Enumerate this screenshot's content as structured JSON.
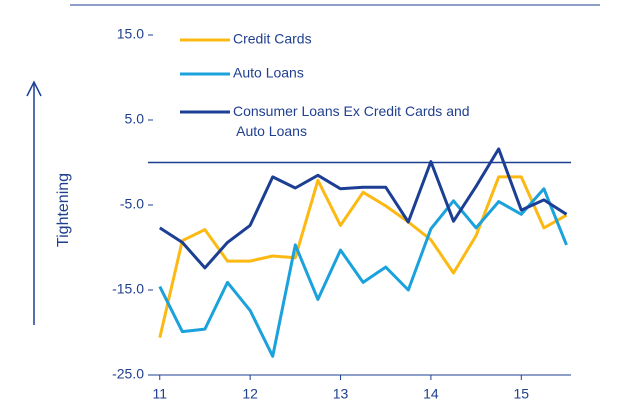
{
  "chart_data": {
    "type": "line",
    "y_label": "Tightening",
    "x": [
      11,
      11.25,
      11.5,
      11.75,
      12,
      12.25,
      12.5,
      12.75,
      13,
      13.25,
      13.5,
      13.75,
      14,
      14.25,
      14.5,
      14.75,
      15,
      15.25,
      15.5
    ],
    "series": [
      {
        "name": "Credit Cards",
        "color": "#fdb913",
        "values": [
          -20.6,
          -9.2,
          -7.9,
          -11.6,
          -11.6,
          -11.0,
          -11.2,
          -2.1,
          -7.4,
          -3.5,
          -5.1,
          -7.0,
          -9.1,
          -13.0,
          -8.6,
          -1.7,
          -1.7,
          -7.7,
          -6.2
        ]
      },
      {
        "name": "Auto Loans",
        "color": "#1ba1dc",
        "values": [
          -14.6,
          -19.9,
          -19.6,
          -14.1,
          -17.4,
          -22.8,
          -9.7,
          -16.1,
          -10.3,
          -14.1,
          -12.3,
          -15.0,
          -7.8,
          -4.5,
          -7.7,
          -4.6,
          -6.1,
          -3.1,
          -9.7
        ]
      },
      {
        "name": "Consumer Loans Ex Credit Cards and Auto Loans",
        "color": "#1c3f94",
        "values": [
          -7.7,
          -9.4,
          -12.4,
          -9.4,
          -7.4,
          -1.7,
          -3.0,
          -1.5,
          -3.1,
          -2.9,
          -2.9,
          -7.0,
          0.1,
          -6.9,
          -2.8,
          1.6,
          -5.6,
          -4.4,
          -6.1
        ]
      }
    ],
    "xlim": [
      10.87,
      15.55
    ],
    "xticks": [
      11,
      12,
      13,
      14,
      15
    ],
    "ylim": [
      -25,
      15
    ],
    "yticks": [
      {
        "value": -25,
        "label": "-25.0"
      },
      {
        "value": -15,
        "label": "-15.0"
      },
      {
        "value": -5,
        "label": "-5.0"
      },
      {
        "value": 5,
        "label": "5.0"
      },
      {
        "value": 15,
        "label": "15.0"
      }
    ],
    "grid": false
  }
}
